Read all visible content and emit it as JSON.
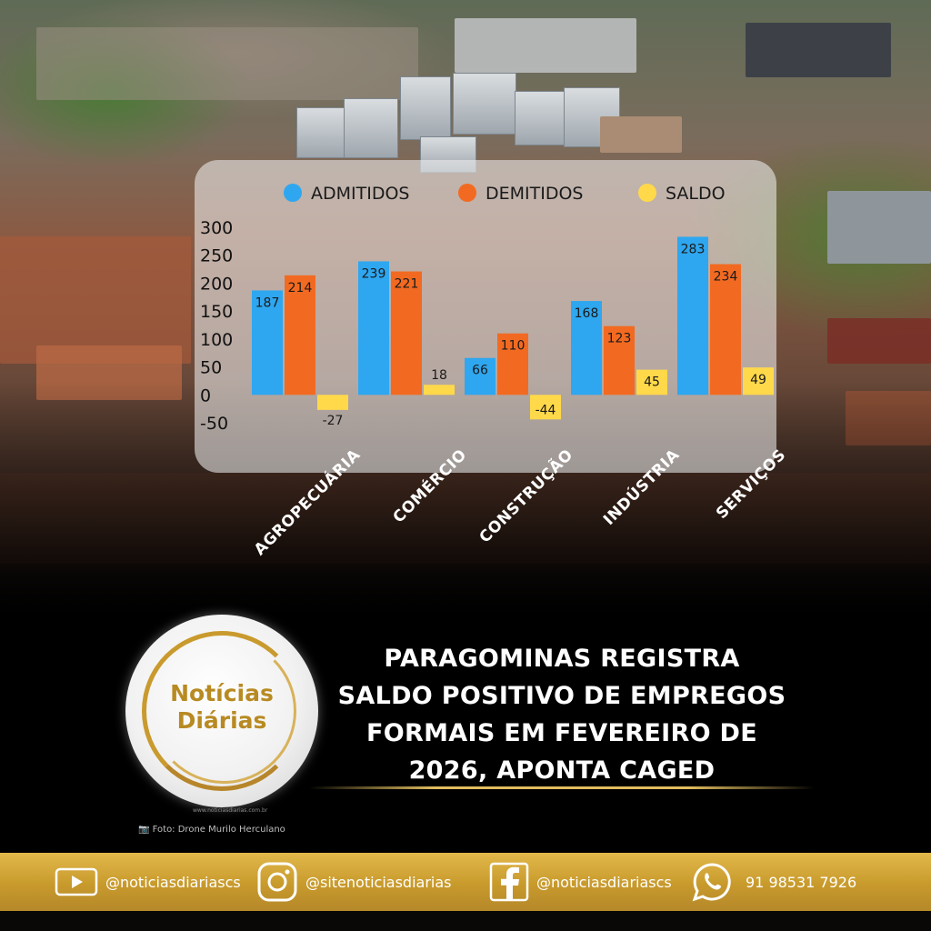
{
  "chart_data": {
    "type": "bar",
    "categories": [
      "AGROPECUÁRIA",
      "COMÉRCIO",
      "CONSTRUÇÃO",
      "INDÚSTRIA",
      "SERVIÇOS"
    ],
    "series": [
      {
        "name": "ADMITIDOS",
        "color": "#2ea7f0",
        "values": [
          187,
          239,
          66,
          168,
          283
        ]
      },
      {
        "name": "DEMITIDOS",
        "color": "#f26a21",
        "values": [
          214,
          221,
          110,
          123,
          234
        ]
      },
      {
        "name": "SALDO",
        "color": "#ffd94a",
        "values": [
          -27,
          18,
          -44,
          45,
          49
        ]
      }
    ],
    "yticks": [
      "300",
      "250",
      "200",
      "150",
      "100",
      "50",
      "0",
      "-50"
    ],
    "ylim": [
      -50,
      300
    ],
    "legend_position": "top",
    "grid": false
  },
  "news": {
    "headline_lines": [
      "PARAGOMINAS REGISTRA",
      "SALDO POSITIVO DE EMPREGOS",
      "FORMAIS EM FEVEREIRO DE",
      "2026, APONTA CAGED"
    ],
    "logo_line1": "Notícias",
    "logo_line2": "Diárias",
    "logo_url": "www.noticiasdiarias.com.br",
    "photo_credit": "📷 Foto:  Drone Murilo Herculano"
  },
  "footer": {
    "youtube": {
      "icon": "youtube-icon",
      "handle": "@noticiasdiariascs"
    },
    "instagram": {
      "icon": "instagram-icon",
      "handle": "@sitenoticiasdiarias"
    },
    "facebook": {
      "icon": "facebook-icon",
      "handle": "@noticiasdiariascs"
    },
    "whatsapp": {
      "icon": "whatsapp-icon",
      "handle": "91 98531 7926"
    }
  },
  "colors": {
    "gold": "#c99a2e",
    "panel": "#eeeeee",
    "admitidos": "#2ea7f0",
    "demitidos": "#f26a21",
    "saldo": "#ffd94a"
  }
}
